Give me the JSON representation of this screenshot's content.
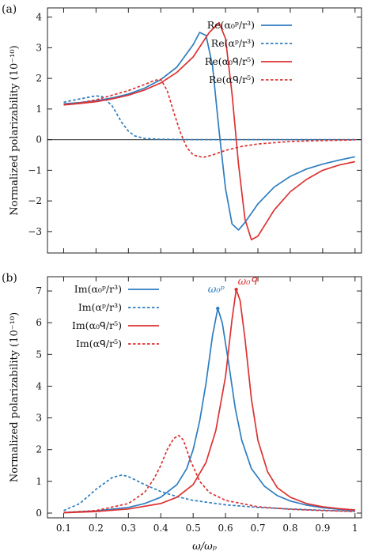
{
  "chart_data": [
    {
      "type": "line",
      "panel_label": "(a)",
      "ylabel": "Normalized polarizability (10⁻¹⁰)",
      "xlabel": "",
      "xlim": [
        0.05,
        1.02
      ],
      "ylim": [
        -3.7,
        4.3
      ],
      "xticks": [
        0.1,
        0.2,
        0.3,
        0.4,
        0.5,
        0.6,
        0.7,
        0.8,
        0.9,
        1.0
      ],
      "show_xtick_labels": false,
      "yticks": [
        -3,
        -2,
        -1,
        0,
        1,
        2,
        3,
        4
      ],
      "ytick_labels": [
        "−3",
        "−2",
        "−1",
        "0",
        "1",
        "2",
        "3",
        "4"
      ],
      "zero_line": true,
      "legend_position": "top-right",
      "series": [
        {
          "name": "Re(α₀ᵖ/r³)",
          "color": "#2e7dc0",
          "dash": "solid",
          "x": [
            0.1,
            0.15,
            0.2,
            0.25,
            0.3,
            0.35,
            0.4,
            0.45,
            0.5,
            0.52,
            0.54,
            0.56,
            0.58,
            0.6,
            0.62,
            0.64,
            0.66,
            0.7,
            0.75,
            0.8,
            0.85,
            0.9,
            0.95,
            1.0
          ],
          "y": [
            1.17,
            1.21,
            1.27,
            1.36,
            1.49,
            1.68,
            1.96,
            2.37,
            3.1,
            3.5,
            3.4,
            2.4,
            0.3,
            -1.6,
            -2.75,
            -2.95,
            -2.7,
            -2.1,
            -1.55,
            -1.2,
            -0.96,
            -0.8,
            -0.67,
            -0.56
          ]
        },
        {
          "name": "Re(αᵖ/r³)",
          "color": "#2e7dc0",
          "dash": "dashed",
          "x": [
            0.1,
            0.15,
            0.2,
            0.22,
            0.25,
            0.28,
            0.3,
            0.32,
            0.35,
            0.4,
            0.5,
            0.6,
            0.7,
            0.8,
            0.9,
            1.0
          ],
          "y": [
            1.22,
            1.33,
            1.43,
            1.4,
            1.1,
            0.55,
            0.28,
            0.12,
            0.04,
            0.01,
            0.0,
            0.0,
            0.0,
            0.0,
            0.0,
            0.0
          ]
        },
        {
          "name": "Re(α₀ᑫ/r⁵)",
          "color": "#dc3232",
          "dash": "solid",
          "x": [
            0.1,
            0.15,
            0.2,
            0.25,
            0.3,
            0.35,
            0.4,
            0.45,
            0.5,
            0.55,
            0.58,
            0.6,
            0.62,
            0.64,
            0.66,
            0.68,
            0.7,
            0.75,
            0.8,
            0.85,
            0.9,
            0.95,
            1.0
          ],
          "y": [
            1.13,
            1.18,
            1.24,
            1.33,
            1.45,
            1.62,
            1.85,
            2.2,
            2.7,
            3.5,
            3.82,
            3.3,
            1.5,
            -0.8,
            -2.6,
            -3.27,
            -3.15,
            -2.3,
            -1.7,
            -1.3,
            -1.0,
            -0.83,
            -0.72
          ]
        },
        {
          "name": "Re(αᑫ/r⁵)",
          "color": "#dc3232",
          "dash": "dashed",
          "x": [
            0.1,
            0.15,
            0.2,
            0.25,
            0.3,
            0.35,
            0.38,
            0.4,
            0.42,
            0.44,
            0.46,
            0.48,
            0.5,
            0.53,
            0.56,
            0.6,
            0.65,
            0.7,
            0.8,
            0.9,
            1.0
          ],
          "y": [
            1.15,
            1.2,
            1.3,
            1.45,
            1.6,
            1.8,
            1.93,
            1.97,
            1.6,
            0.9,
            0.25,
            -0.25,
            -0.5,
            -0.58,
            -0.5,
            -0.35,
            -0.22,
            -0.14,
            -0.06,
            -0.03,
            -0.01
          ]
        }
      ]
    },
    {
      "type": "line",
      "panel_label": "(b)",
      "ylabel": "Normalized polarizability (10⁻¹⁰)",
      "xlabel": "ω/ωₚ",
      "xlim": [
        0.05,
        1.02
      ],
      "ylim": [
        -0.15,
        7.45
      ],
      "xticks": [
        0.1,
        0.2,
        0.3,
        0.4,
        0.5,
        0.6,
        0.7,
        0.8,
        0.9,
        1.0
      ],
      "xtick_labels": [
        "0.1",
        "0.2",
        "0.3",
        "0.4",
        "0.5",
        "0.6",
        "0.7",
        "0.8",
        "0.9",
        "1"
      ],
      "show_xtick_labels": true,
      "yticks": [
        0,
        1,
        2,
        3,
        4,
        5,
        6,
        7
      ],
      "ytick_labels": [
        "0",
        "1",
        "2",
        "3",
        "4",
        "5",
        "6",
        "7"
      ],
      "zero_line": false,
      "legend_position": "top-left",
      "annotations": [
        {
          "text": "ω₀ᵖ",
          "color": "#2e7dc0",
          "x": 0.576,
          "y": 6.45
        },
        {
          "text": "ω₀ᑫ",
          "color": "#dc3232",
          "x": 0.633,
          "y": 7.05
        }
      ],
      "series": [
        {
          "name": "Im(α₀ᵖ/r³)",
          "color": "#2e7dc0",
          "dash": "solid",
          "x": [
            0.1,
            0.2,
            0.3,
            0.35,
            0.4,
            0.45,
            0.48,
            0.5,
            0.52,
            0.54,
            0.56,
            0.576,
            0.59,
            0.61,
            0.63,
            0.65,
            0.68,
            0.72,
            0.76,
            0.8,
            0.85,
            0.9,
            0.95,
            1.0
          ],
          "y": [
            0.02,
            0.07,
            0.18,
            0.3,
            0.5,
            0.9,
            1.4,
            2.0,
            2.9,
            4.1,
            5.6,
            6.45,
            6.0,
            4.7,
            3.3,
            2.3,
            1.4,
            0.85,
            0.55,
            0.38,
            0.25,
            0.17,
            0.12,
            0.09
          ]
        },
        {
          "name": "Im(αᵖ/r³)",
          "color": "#2e7dc0",
          "dash": "dashed",
          "x": [
            0.1,
            0.15,
            0.2,
            0.25,
            0.28,
            0.3,
            0.35,
            0.4,
            0.45,
            0.5,
            0.6,
            0.7,
            0.8,
            0.9,
            1.0
          ],
          "y": [
            0.08,
            0.3,
            0.75,
            1.12,
            1.2,
            1.15,
            0.9,
            0.68,
            0.52,
            0.4,
            0.26,
            0.18,
            0.13,
            0.09,
            0.06
          ]
        },
        {
          "name": "Im(α₀ᑫ/r⁵)",
          "color": "#dc3232",
          "dash": "solid",
          "x": [
            0.1,
            0.2,
            0.3,
            0.4,
            0.45,
            0.5,
            0.54,
            0.57,
            0.6,
            0.62,
            0.633,
            0.645,
            0.66,
            0.68,
            0.7,
            0.73,
            0.76,
            0.8,
            0.85,
            0.9,
            0.95,
            1.0
          ],
          "y": [
            0.01,
            0.05,
            0.13,
            0.3,
            0.5,
            0.9,
            1.6,
            2.6,
            4.3,
            6.1,
            7.05,
            6.7,
            5.5,
            3.6,
            2.3,
            1.3,
            0.8,
            0.5,
            0.3,
            0.2,
            0.14,
            0.1
          ]
        },
        {
          "name": "Im(αᑫ/r⁵)",
          "color": "#dc3232",
          "dash": "dashed",
          "x": [
            0.1,
            0.2,
            0.3,
            0.35,
            0.38,
            0.4,
            0.42,
            0.44,
            0.455,
            0.47,
            0.49,
            0.52,
            0.55,
            0.6,
            0.7,
            0.8,
            0.9,
            1.0
          ],
          "y": [
            0.02,
            0.08,
            0.3,
            0.65,
            1.1,
            1.5,
            2.0,
            2.35,
            2.45,
            2.3,
            1.7,
            1.0,
            0.65,
            0.4,
            0.2,
            0.12,
            0.08,
            0.05
          ]
        }
      ]
    }
  ]
}
